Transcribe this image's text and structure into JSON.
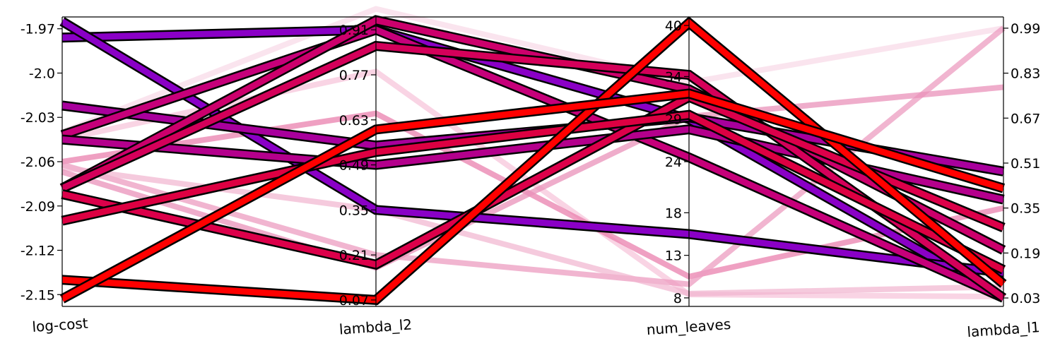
{
  "chart_data": {
    "type": "parallel_coordinates",
    "title": "",
    "dimensions": [
      {
        "name": "log-cost",
        "range": [
          -2.158,
          -1.962
        ],
        "ticks": [
          -2.15,
          -2.12,
          -2.09,
          -2.06,
          -2.03,
          -2.0,
          -1.97
        ],
        "tick_labels": [
          "-2.15",
          "-2.12",
          "-2.09",
          "-2.06",
          "-2.03",
          "-2.0",
          "-1.97"
        ],
        "tick_side": "left"
      },
      {
        "name": "lambda_l2",
        "range": [
          0.05,
          0.95
        ],
        "ticks": [
          0.07,
          0.21,
          0.35,
          0.49,
          0.63,
          0.77,
          0.91
        ],
        "tick_labels": [
          "0.07",
          "0.21",
          "0.35",
          "0.49",
          "0.63",
          "0.77",
          "0.91"
        ],
        "tick_side": "left"
      },
      {
        "name": "num_leaves",
        "range": [
          7,
          41
        ],
        "ticks": [
          8,
          13,
          18,
          24,
          29,
          34,
          40
        ],
        "tick_labels": [
          "8",
          "13",
          "18",
          "24",
          "29",
          "34",
          "40"
        ],
        "tick_side": "left"
      },
      {
        "name": "lambda_l1",
        "range": [
          0.0,
          1.03
        ],
        "ticks": [
          0.03,
          0.19,
          0.35,
          0.51,
          0.67,
          0.83,
          0.99
        ],
        "tick_labels": [
          "0.03",
          "0.19",
          "0.35",
          "0.51",
          "0.67",
          "0.83",
          "0.99"
        ],
        "tick_side": "right"
      }
    ],
    "lines": [
      {
        "values": [
          -2.04,
          0.975,
          33.3,
          0.99
        ],
        "color": "#f7d2e2",
        "opacity": 0.6,
        "outlined": false
      },
      {
        "values": [
          -2.045,
          0.78,
          8.4,
          0.035
        ],
        "color": "#f5b8d2",
        "opacity": 0.6,
        "outlined": false
      },
      {
        "values": [
          -2.06,
          0.65,
          10.5,
          0.35
        ],
        "color": "#e980ad",
        "opacity": 0.75,
        "outlined": false
      },
      {
        "values": [
          -2.062,
          0.21,
          9.6,
          0.99
        ],
        "color": "#ec9cc0",
        "opacity": 0.75,
        "outlined": false
      },
      {
        "values": [
          -2.064,
          0.35,
          8.5,
          0.07
        ],
        "color": "#f1b4cf",
        "opacity": 0.7,
        "outlined": false
      },
      {
        "values": [
          -2.067,
          0.17,
          29.3,
          0.78
        ],
        "color": "#ea92ba",
        "opacity": 0.75,
        "outlined": false
      },
      {
        "values": [
          -1.976,
          0.91,
          29.0,
          0.03
        ],
        "color": "#8a00c6",
        "opacity": 1,
        "outlined": true
      },
      {
        "values": [
          -1.965,
          0.35,
          15.5,
          0.12
        ],
        "color": "#8a00c6",
        "opacity": 1,
        "outlined": true
      },
      {
        "values": [
          -2.022,
          0.55,
          29.2,
          0.48
        ],
        "color": "#a8009c",
        "opacity": 1,
        "outlined": true
      },
      {
        "values": [
          -2.042,
          0.91,
          24.5,
          0.03
        ],
        "color": "#c6007a",
        "opacity": 1,
        "outlined": true
      },
      {
        "values": [
          -2.045,
          0.49,
          27.8,
          0.38
        ],
        "color": "#b4008c",
        "opacity": 1,
        "outlined": true
      },
      {
        "values": [
          -2.078,
          0.94,
          32.5,
          0.2
        ],
        "color": "#cc006c",
        "opacity": 1,
        "outlined": true
      },
      {
        "values": [
          -2.078,
          0.86,
          34.2,
          0.03
        ],
        "color": "#d4005a",
        "opacity": 1,
        "outlined": true
      },
      {
        "values": [
          -2.082,
          0.18,
          31.6,
          0.28
        ],
        "color": "#dc004a",
        "opacity": 1,
        "outlined": true
      },
      {
        "values": [
          -2.1,
          0.53,
          29.5,
          0.13
        ],
        "color": "#dd0042",
        "opacity": 1,
        "outlined": true
      },
      {
        "values": [
          -2.14,
          0.07,
          40.3,
          0.08
        ],
        "color": "#ff0000",
        "opacity": 1,
        "outlined": true
      },
      {
        "values": [
          -2.153,
          0.6,
          32.0,
          0.42
        ],
        "color": "#ff0000",
        "opacity": 1,
        "outlined": true
      }
    ]
  }
}
